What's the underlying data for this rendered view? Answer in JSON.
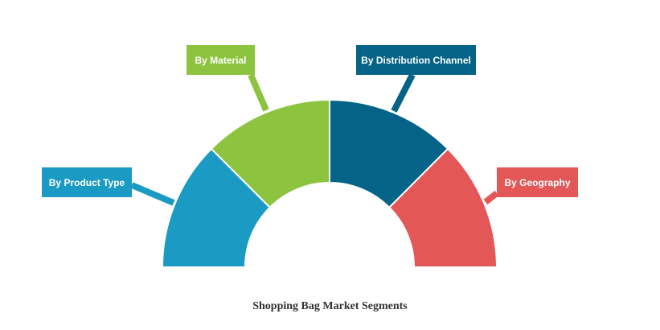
{
  "title": "Shopping Bag Market Segments",
  "segments": [
    {
      "label": "By Product Type",
      "color": "#1b9ac4",
      "share": 25
    },
    {
      "label": "By Material",
      "color": "#8cc43f",
      "share": 25
    },
    {
      "label": "By Distribution Channel",
      "color": "#046387",
      "share": 25
    },
    {
      "label": "By Geography",
      "color": "#e35757",
      "share": 25
    }
  ]
}
